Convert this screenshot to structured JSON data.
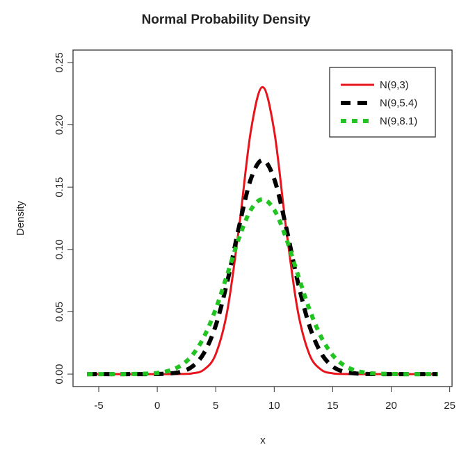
{
  "chart_data": {
    "type": "line",
    "title": "Normal Probability Density",
    "x_label": "x",
    "y_label": "Density",
    "x": [
      -6,
      -5,
      -4,
      -3,
      -2,
      -1,
      0,
      1,
      2,
      3,
      4,
      5,
      6,
      7,
      8,
      9,
      10,
      11,
      12,
      13,
      14,
      15,
      16,
      17,
      18,
      19,
      20,
      21,
      22,
      23,
      24
    ],
    "series": [
      {
        "name": "N(9,3)",
        "color": "#e8141c",
        "dash": "solid",
        "values": [
          0,
          0,
          0,
          0,
          0,
          0,
          0,
          0,
          0.0001,
          0.0006,
          0.0036,
          0.016,
          0.0514,
          0.1182,
          0.195,
          0.2303,
          0.195,
          0.1182,
          0.0514,
          0.016,
          0.0036,
          0.0006,
          0.0001,
          0,
          0,
          0,
          0,
          0,
          0,
          0,
          0
        ]
      },
      {
        "name": "N(9,5.4)",
        "color": "#000000",
        "dash": "dashed",
        "values": [
          0,
          0,
          0,
          0,
          0,
          0,
          0.0001,
          0.0005,
          0.0018,
          0.0061,
          0.017,
          0.039,
          0.0746,
          0.1186,
          0.1565,
          0.1717,
          0.1565,
          0.1186,
          0.0746,
          0.039,
          0.017,
          0.0061,
          0.0018,
          0.0005,
          0.0001,
          0,
          0,
          0,
          0,
          0,
          0
        ]
      },
      {
        "name": "N(9,8.1)",
        "color": "#22c422",
        "dash": "dotted",
        "values": [
          0,
          0,
          0,
          0,
          0.0001,
          0.0003,
          0.0009,
          0.0027,
          0.0068,
          0.0152,
          0.03,
          0.0522,
          0.0804,
          0.1095,
          0.1318,
          0.1402,
          0.1318,
          0.1095,
          0.0804,
          0.0522,
          0.03,
          0.0152,
          0.0068,
          0.0027,
          0.0009,
          0.0003,
          0.0001,
          0,
          0,
          0,
          0
        ]
      }
    ],
    "xlim": [
      -7.2,
      25.2
    ],
    "xticks": [
      -5,
      0,
      5,
      10,
      15,
      20,
      25
    ],
    "ylim": [
      -0.01,
      0.26
    ],
    "yticks": [
      {
        "value": 0,
        "label": "0.00"
      },
      0.05,
      {
        "value": 0.1,
        "label": "0.10"
      },
      0.15,
      {
        "value": 0.2,
        "label": "0.20"
      },
      0.25
    ],
    "legend": "top-right"
  }
}
